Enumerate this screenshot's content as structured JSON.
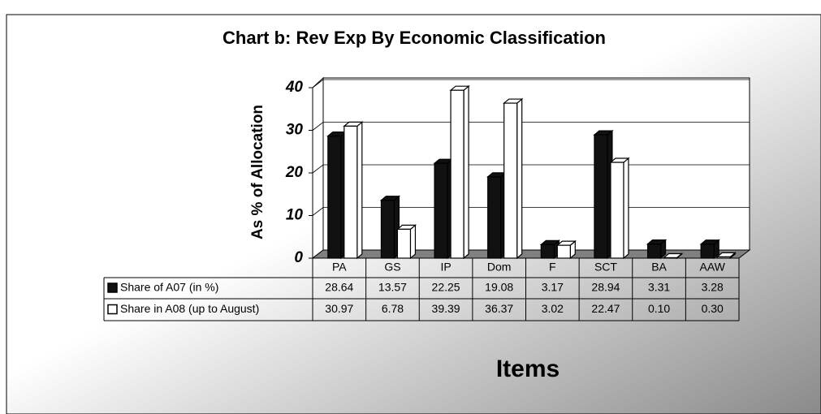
{
  "chart_data": {
    "type": "bar3d",
    "title": "Chart b: Rev Exp By Economic Classification",
    "ylabel": "As % of Allocation",
    "xlabel": "Items",
    "categories": [
      "PA",
      "GS",
      "IP",
      "Dom",
      "F",
      "SCT",
      "BA",
      "AAW"
    ],
    "series": [
      {
        "name": "Share of A07 (in %)",
        "color": "#111111",
        "values": [
          28.64,
          13.57,
          22.25,
          19.08,
          3.17,
          28.94,
          3.31,
          3.28
        ],
        "value_labels": [
          "28.64",
          "13.57",
          "22.25",
          "19.08",
          "3.17",
          "28.94",
          "3.31",
          "3.28"
        ]
      },
      {
        "name": "Share in A08 (up to August)",
        "color": "#ffffff",
        "values": [
          30.97,
          6.78,
          39.39,
          36.37,
          3.02,
          22.47,
          0.1,
          0.3
        ],
        "value_labels": [
          "30.97",
          "6.78",
          "39.39",
          "36.37",
          "3.02",
          "22.47",
          "0.10",
          "0.30"
        ]
      }
    ],
    "ylim": [
      0,
      40
    ],
    "yticks": [
      0,
      10,
      20,
      30,
      40
    ],
    "grid": true
  }
}
